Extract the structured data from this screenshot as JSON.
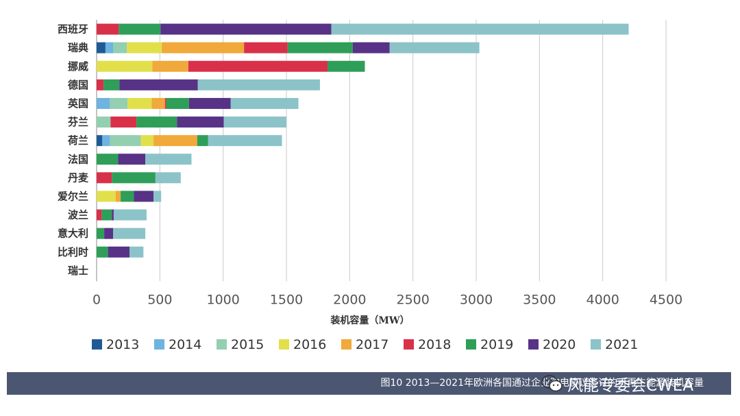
{
  "chart_data": {
    "type": "bar",
    "orientation": "horizontal",
    "stacked": true,
    "categories": [
      "西班牙",
      "瑞典",
      "挪威",
      "德国",
      "英国",
      "芬兰",
      "荷兰",
      "法国",
      "丹麦",
      "爱尔兰",
      "波兰",
      "意大利",
      "比利时",
      "瑞士"
    ],
    "series": [
      {
        "name": "2013",
        "color": "#1f5a96",
        "values": [
          0,
          70,
          0,
          0,
          0,
          0,
          45,
          0,
          0,
          0,
          0,
          0,
          0,
          0
        ]
      },
      {
        "name": "2014",
        "color": "#6fb3e0",
        "values": [
          0,
          60,
          0,
          0,
          105,
          0,
          60,
          0,
          0,
          0,
          0,
          0,
          0,
          0
        ]
      },
      {
        "name": "2015",
        "color": "#93cfb0",
        "values": [
          0,
          110,
          0,
          0,
          140,
          110,
          245,
          0,
          0,
          0,
          0,
          0,
          0,
          0
        ]
      },
      {
        "name": "2016",
        "color": "#e2e04a",
        "values": [
          0,
          275,
          440,
          0,
          190,
          0,
          100,
          0,
          0,
          150,
          0,
          0,
          0,
          0
        ]
      },
      {
        "name": "2017",
        "color": "#f0a93a",
        "values": [
          0,
          650,
          285,
          0,
          105,
          0,
          345,
          0,
          0,
          40,
          0,
          0,
          0,
          0
        ]
      },
      {
        "name": "2018",
        "color": "#d9304a",
        "values": [
          175,
          345,
          1100,
          55,
          10,
          205,
          0,
          0,
          120,
          0,
          40,
          0,
          0,
          0
        ]
      },
      {
        "name": "2019",
        "color": "#2f9e58",
        "values": [
          330,
          515,
          295,
          125,
          180,
          320,
          85,
          170,
          345,
          105,
          80,
          60,
          90,
          0
        ]
      },
      {
        "name": "2020",
        "color": "#573286",
        "values": [
          1350,
          290,
          0,
          620,
          330,
          370,
          0,
          215,
          0,
          155,
          15,
          70,
          170,
          0
        ]
      },
      {
        "name": "2021",
        "color": "#8bc3c8",
        "values": [
          2350,
          710,
          0,
          965,
          535,
          495,
          585,
          365,
          200,
          60,
          260,
          255,
          110,
          0
        ]
      }
    ],
    "xlabel": "装机容量（MW）",
    "xlim": [
      0,
      4500
    ],
    "xticks": [
      0,
      500,
      1000,
      1500,
      2000,
      2500,
      3000,
      3500,
      4000,
      4500
    ],
    "grid": true,
    "legend_position": "bottom"
  },
  "caption": "图10 2013—2021年欧洲各国通过企业购电协议签订的可再生能源装机容量",
  "watermark": {
    "icon": "wechat-icon",
    "text": "风能专委会CWEA"
  }
}
